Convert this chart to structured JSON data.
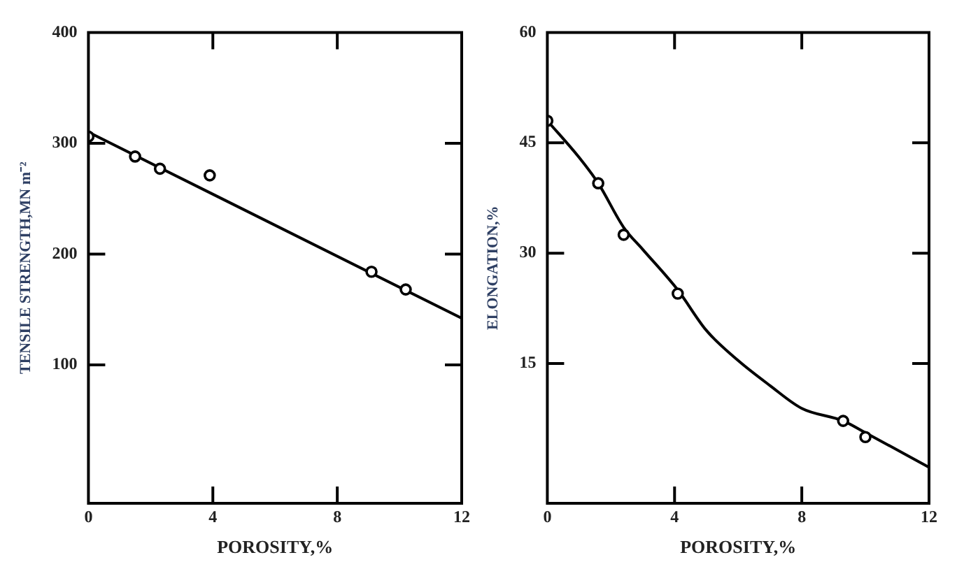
{
  "chart_data": [
    {
      "type": "scatter",
      "xlabel": "POROSITY,%",
      "ylabel": "TENSILE STRENGTH,MN m⁻²",
      "xlim": [
        0,
        12
      ],
      "xticks": [
        0,
        4,
        8,
        12
      ],
      "ylim": [
        -25,
        400
      ],
      "yticks": [
        100,
        200,
        300,
        400
      ],
      "grid": false,
      "legend": false,
      "marker": "circle",
      "series": [
        {
          "type": "scatter",
          "color": "#000000",
          "x": [
            0,
            1.5,
            2.3,
            3.9,
            9.1,
            10.2
          ],
          "values": [
            306,
            288,
            277,
            271,
            184,
            168
          ]
        },
        {
          "type": "line",
          "color": "#000000",
          "marker": "none",
          "line_style": "solid",
          "x": [
            0,
            12
          ],
          "values": [
            310,
            142
          ]
        }
      ]
    },
    {
      "type": "scatter",
      "xlabel": "POROSITY,%",
      "ylabel": "ELONGATION,%",
      "xlim": [
        0,
        12
      ],
      "xticks": [
        0,
        4,
        8,
        12
      ],
      "ylim": [
        -4,
        60
      ],
      "yticks": [
        15,
        30,
        45,
        60
      ],
      "grid": false,
      "legend": false,
      "marker": "circle",
      "series": [
        {
          "type": "scatter",
          "color": "#000000",
          "x": [
            0,
            1.6,
            2.4,
            4.1,
            9.3,
            10
          ],
          "values": [
            48,
            39.5,
            32.5,
            24.5,
            7.2,
            5
          ]
        },
        {
          "type": "line",
          "color": "#000000",
          "marker": "none",
          "line_style": "solid",
          "x": [
            0,
            1,
            1.6,
            2.4,
            3,
            4.1,
            5,
            6,
            7,
            8,
            9.3,
            10,
            12
          ],
          "values": [
            48,
            43,
            39.5,
            33.5,
            30.5,
            25,
            19.5,
            15.4,
            12,
            8.9,
            7.2,
            5.6,
            0.9
          ]
        }
      ]
    }
  ]
}
